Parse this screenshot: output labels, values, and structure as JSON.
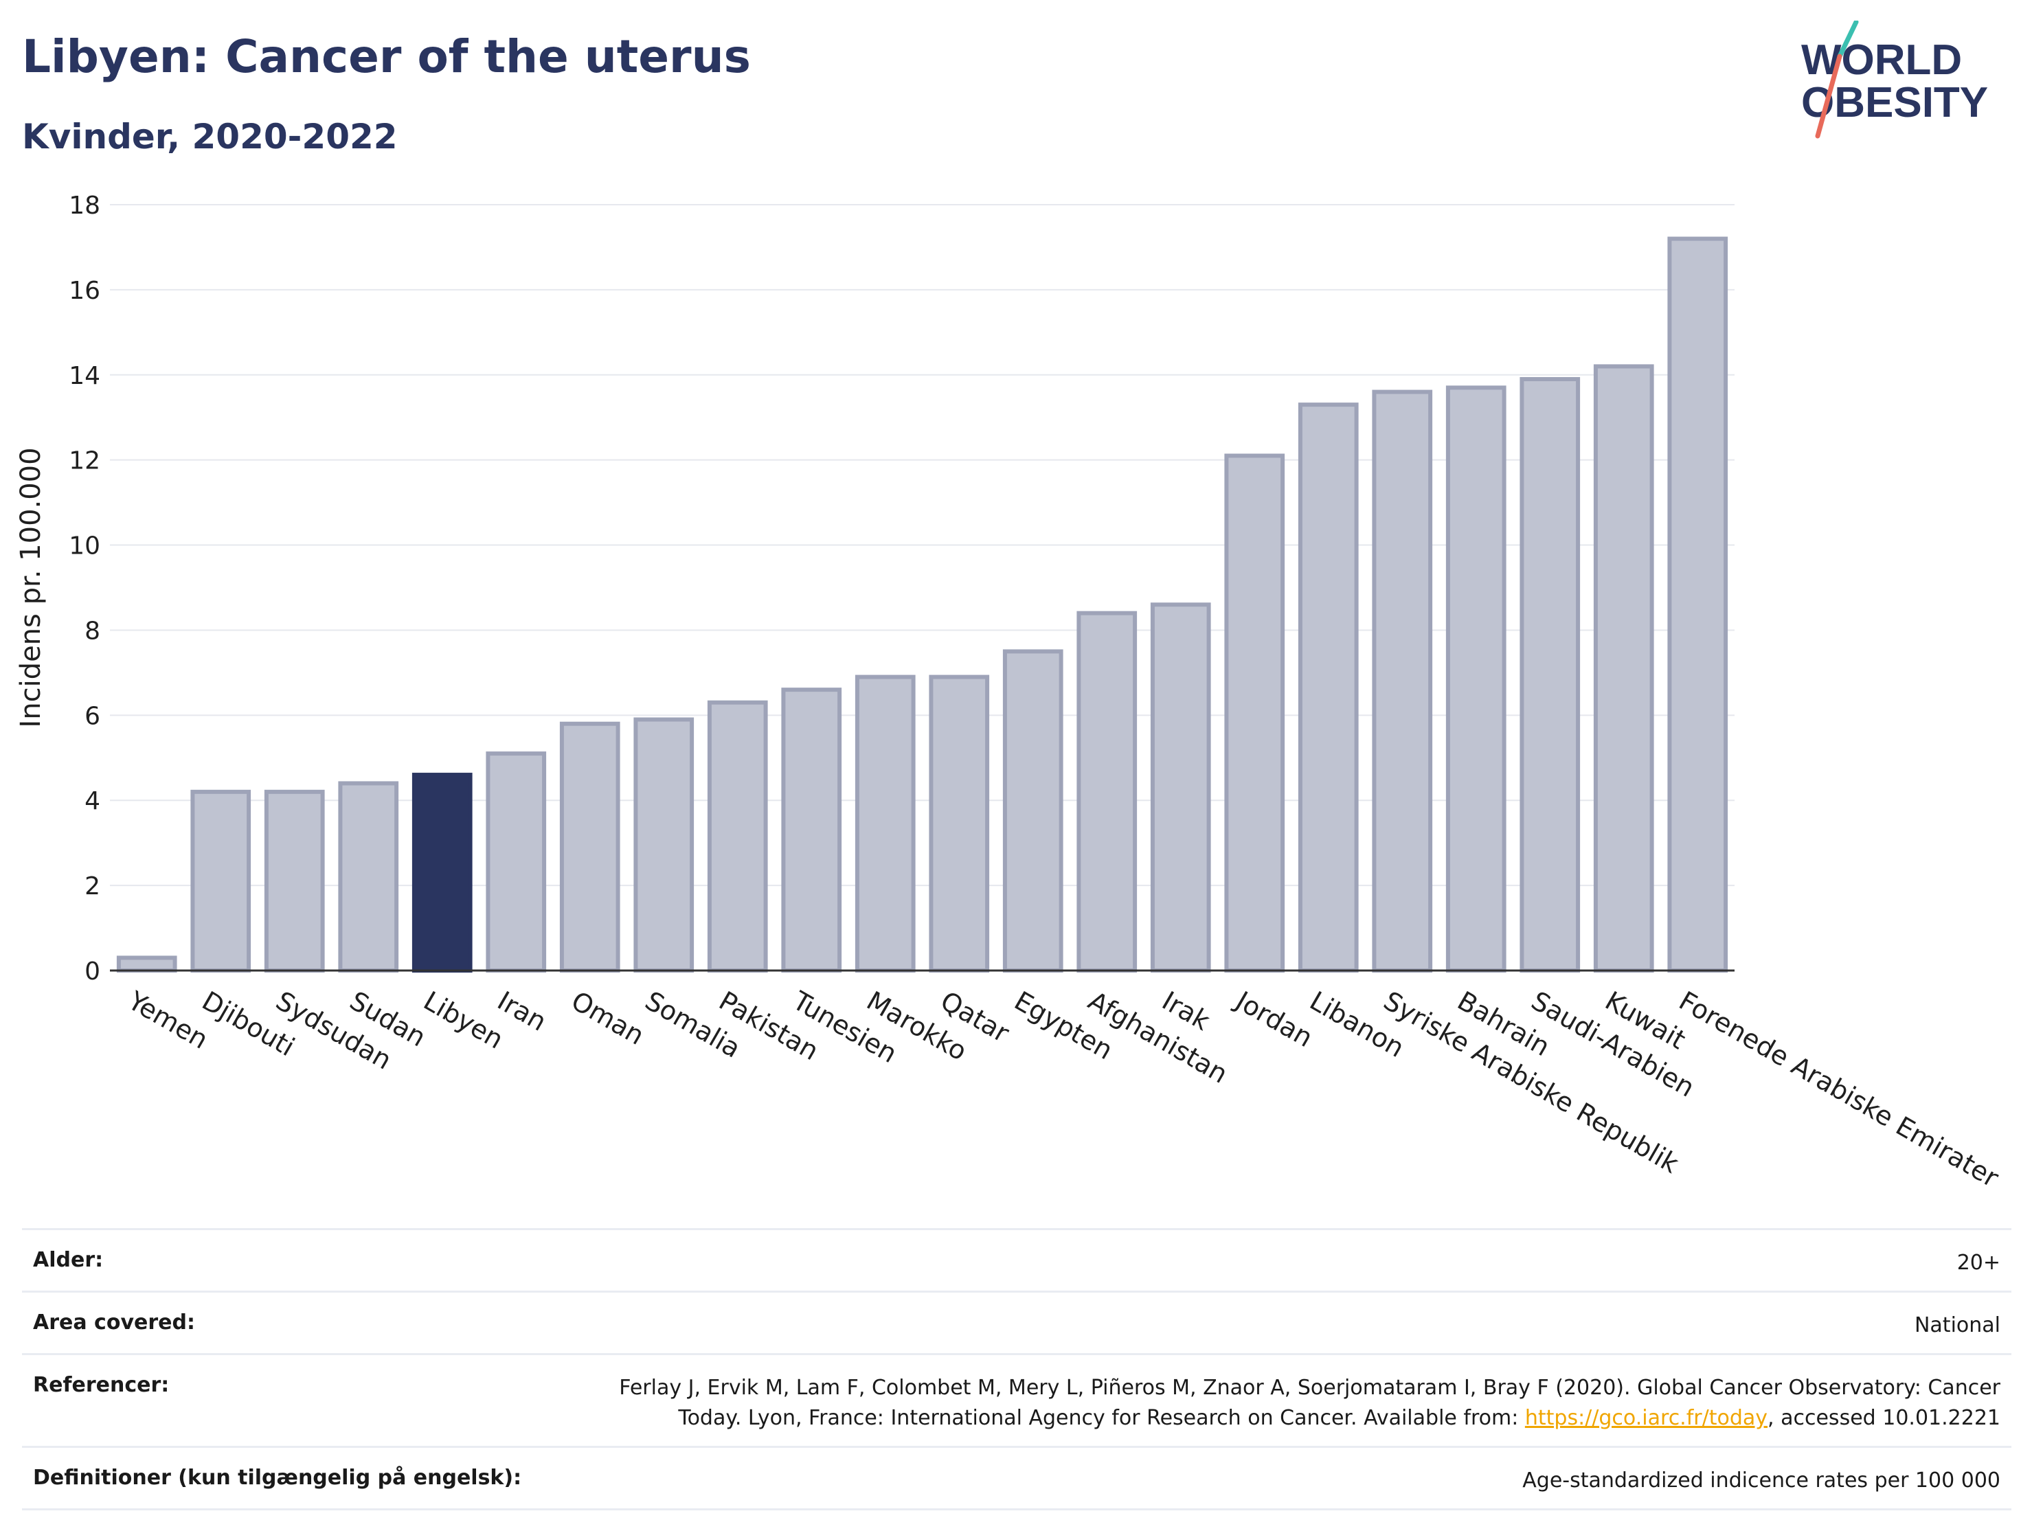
{
  "header": {
    "title": "Libyen: Cancer of the uterus",
    "subtitle": "Kvinder, 2020-2022"
  },
  "logo": {
    "line1": "WORLD",
    "line2": "OBESITY"
  },
  "colors": {
    "bar": "#bfc3d1",
    "bar_stroke": "#9ea3b8",
    "highlight": "#2a3560",
    "text": "#2a3560"
  },
  "chart_data": {
    "type": "bar",
    "ylabel": "Incidens pr. 100.000",
    "xlabel": "",
    "ylim": [
      0,
      18
    ],
    "yticks": [
      0,
      2,
      4,
      6,
      8,
      10,
      12,
      14,
      16,
      18
    ],
    "grid": true,
    "highlight": "Libyen",
    "categories": [
      "Yemen",
      "Djibouti",
      "Sydsudan",
      "Sudan",
      "Libyen",
      "Iran",
      "Oman",
      "Somalia",
      "Pakistan",
      "Tunesien",
      "Marokko",
      "Qatar",
      "Egypten",
      "Afghanistan",
      "Irak",
      "Jordan",
      "Libanon",
      "Syriske Arabiske Republik",
      "Bahrain",
      "Saudi-Arabien",
      "Kuwait",
      "Forenede Arabiske Emirater"
    ],
    "values": [
      0.3,
      4.2,
      4.2,
      4.4,
      4.6,
      5.1,
      5.8,
      5.9,
      6.3,
      6.6,
      6.9,
      6.9,
      7.5,
      8.4,
      8.6,
      12.1,
      13.3,
      13.6,
      13.7,
      13.9,
      14.2,
      17.2
    ]
  },
  "meta": [
    {
      "label": "Alder:",
      "value": "20+"
    },
    {
      "label": "Area covered:",
      "value": "National"
    },
    {
      "label": "Referencer:",
      "value_line1": "Ferlay J, Ervik M, Lam F, Colombet M, Mery L, Piñeros M, Znaor A, Soerjomataram I, Bray F (2020). Global Cancer Observatory: Cancer",
      "value_line2_pre": "Today. Lyon, France: International Agency for Research on Cancer. Available from: ",
      "link": "https://gco.iarc.fr/today",
      "value_line2_post": ", accessed 10.01.2221"
    },
    {
      "label": "Definitioner (kun tilgængelig på engelsk):",
      "value": "Age-standardized indicence rates per 100 000"
    }
  ]
}
